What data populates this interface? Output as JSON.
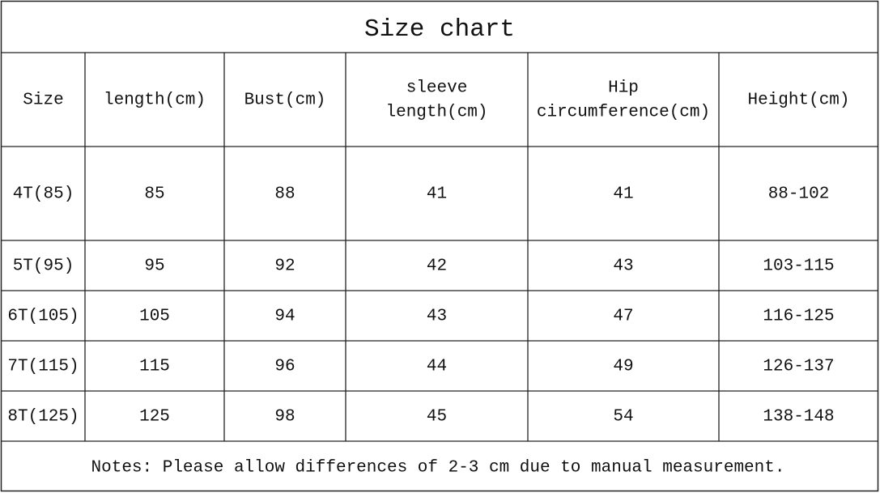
{
  "title": "Size chart",
  "table": {
    "header": [
      [
        "Size"
      ],
      [
        "length(cm)"
      ],
      [
        "Bust(cm)"
      ],
      [
        "sleeve",
        "length(cm)"
      ],
      [
        "Hip",
        "circumference(cm)"
      ],
      [
        "Height(cm)"
      ]
    ],
    "rows": [
      [
        "4T(85)",
        "85",
        "88",
        "41",
        "41",
        "88-102"
      ],
      [
        "5T(95)",
        "95",
        "92",
        "42",
        "43",
        "103-115"
      ],
      [
        "6T(105)",
        "105",
        "94",
        "43",
        "47",
        "116-125"
      ],
      [
        "7T(115)",
        "115",
        "96",
        "44",
        "49",
        "126-137"
      ],
      [
        "8T(125)",
        "125",
        "98",
        "45",
        "54",
        "138-148"
      ]
    ]
  },
  "notes": "Notes: Please allow differences of 2-3 cm due to manual measurement."
}
